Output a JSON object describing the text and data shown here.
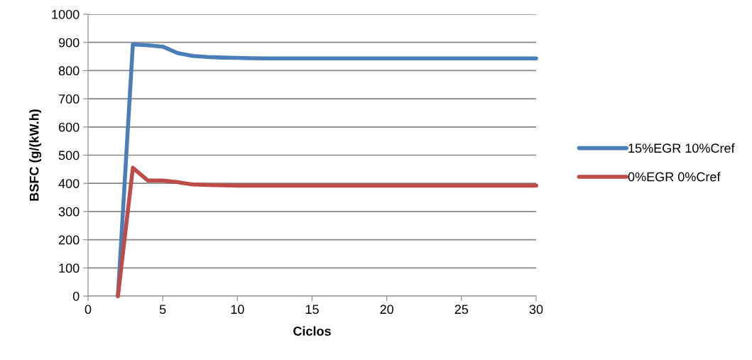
{
  "chart_data": {
    "type": "line",
    "xlabel": "Ciclos",
    "ylabel": "BSFC (g/(kW.h)",
    "x": [
      2,
      3,
      4,
      5,
      6,
      7,
      8,
      9,
      10,
      11,
      12,
      13,
      14,
      15,
      16,
      17,
      18,
      19,
      20,
      21,
      22,
      23,
      24,
      25,
      26,
      27,
      28,
      29,
      30
    ],
    "series": [
      {
        "name": "15%EGR 10%Cref",
        "color": "#4a7ebb",
        "values": [
          0,
          893,
          890,
          885,
          862,
          852,
          848,
          846,
          845,
          844,
          843,
          843,
          843,
          843,
          843,
          843,
          843,
          843,
          843,
          843,
          843,
          843,
          843,
          843,
          843,
          843,
          843,
          843,
          843
        ]
      },
      {
        "name": "0%EGR 0%Cref",
        "color": "#be4b48",
        "values": [
          0,
          455,
          410,
          410,
          404,
          396,
          394,
          393,
          392,
          392,
          392,
          392,
          392,
          392,
          392,
          392,
          392,
          392,
          392,
          392,
          392,
          392,
          392,
          392,
          392,
          392,
          392,
          392,
          392
        ]
      }
    ],
    "xlim": [
      0,
      30
    ],
    "xticks": [
      0,
      5,
      10,
      15,
      20,
      25,
      30
    ],
    "ylim": [
      0,
      1000
    ],
    "yticks": [
      0,
      100,
      200,
      300,
      400,
      500,
      600,
      700,
      800,
      900,
      1000
    ],
    "grid": "y",
    "legend": "right",
    "marker": "none",
    "line_style": "solid"
  }
}
